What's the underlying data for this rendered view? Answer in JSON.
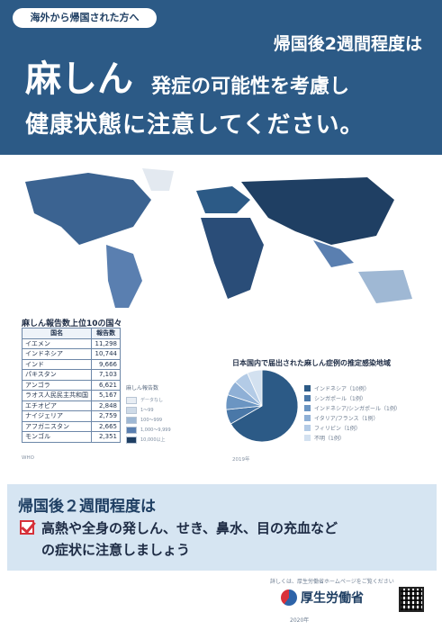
{
  "header": {
    "tag": "海外から帰国された方へ",
    "subtitle": "帰国後2週間程度は",
    "big": "麻しん",
    "big_tail": "発症の可能性を考慮し",
    "line3": "健康状態に注意してください。"
  },
  "ranking": {
    "title": "麻しん報告数上位10の国々",
    "header": [
      "国名",
      "報告数"
    ],
    "rows": [
      [
        "イエメン",
        "11,298"
      ],
      [
        "インドネシア",
        "10,744"
      ],
      [
        "インド",
        "9,666"
      ],
      [
        "パキスタン",
        "7,103"
      ],
      [
        "アンゴラ",
        "6,621"
      ],
      [
        "ラオス人民民主共和国",
        "5,167"
      ],
      [
        "エチオピア",
        "2,848"
      ],
      [
        "ナイジェリア",
        "2,759"
      ],
      [
        "アフガニスタン",
        "2,665"
      ],
      [
        "モンゴル",
        "2,351"
      ]
    ]
  },
  "legend": {
    "title": "麻しん報告数",
    "items": [
      "データなし",
      "1～99",
      "100～999",
      "1,000～9,999",
      "10,000以上"
    ],
    "colors": [
      "#e9eef4",
      "#cfdbe8",
      "#9fb8d4",
      "#5a7fb0",
      "#1f3f63"
    ]
  },
  "pie": {
    "title": "日本国内で届出された麻しん症例の推定感染地域",
    "slices": [
      {
        "label": "インドネシア",
        "value": 10,
        "color": "#2c5a86"
      },
      {
        "label": "シンガポール",
        "value": 1,
        "color": "#4a78a8"
      },
      {
        "label": "インドネシア/シンガポール",
        "value": 1,
        "color": "#6b95c2"
      },
      {
        "label": "イタリア/フランス",
        "value": 1,
        "color": "#8fb0d6"
      },
      {
        "label": "フィリピン",
        "value": 1,
        "color": "#b3cbe6"
      },
      {
        "label": "不明",
        "value": 1,
        "color": "#d3e1f0"
      }
    ]
  },
  "notes": {
    "source": "WHO",
    "pie_source": "2019年"
  },
  "bottom": {
    "title": "帰国後２週間程度は",
    "line1": "高熱や全身の発しん、せき、鼻水、目の充血など",
    "line2": "の症状に注意しましょう"
  },
  "footer": {
    "note": "詳しくは、厚生労働省ホームページをご覧ください",
    "org": "厚生労働省",
    "date": "2020年"
  }
}
